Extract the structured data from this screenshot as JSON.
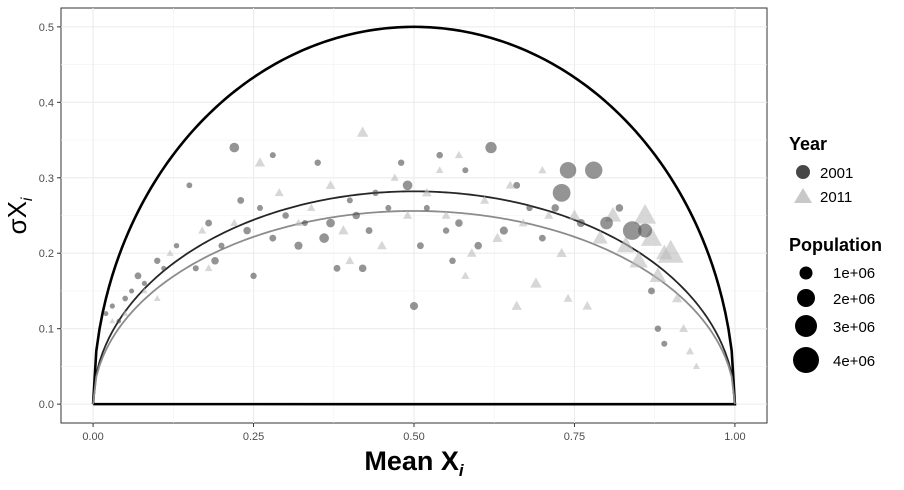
{
  "chart_data": {
    "type": "scatter",
    "xlabel": "Mean X",
    "xlabel_sub": "i",
    "ylabel": "σX",
    "ylabel_sub": "i",
    "xlim": [
      -0.05,
      1.05
    ],
    "ylim": [
      -0.025,
      0.525
    ],
    "xticks": [
      "0.00",
      "0.25",
      "0.50",
      "0.75",
      "1.00"
    ],
    "xtick_values": [
      0,
      0.25,
      0.5,
      0.75,
      1.0
    ],
    "yticks": [
      "0.0",
      "0.1",
      "0.2",
      "0.3",
      "0.4",
      "0.5"
    ],
    "ytick_values": [
      0,
      0.1,
      0.2,
      0.3,
      0.4,
      0.5
    ],
    "grid": true,
    "legend_position": "right",
    "legend": {
      "year_title": "Year",
      "year_entries": [
        {
          "label": "2001",
          "shape": "circle",
          "color": "#333333"
        },
        {
          "label": "2011",
          "shape": "triangle",
          "color": "#c8c8c8"
        }
      ],
      "population_title": "Population",
      "population_entries": [
        {
          "label": "1e+06",
          "value": 1000000
        },
        {
          "label": "2e+06",
          "value": 2000000
        },
        {
          "label": "3e+06",
          "value": 3000000
        },
        {
          "label": "4e+06",
          "value": 4000000
        }
      ]
    },
    "colors": {
      "year2001": "#4d4d4d",
      "year2011": "#bdbdbd",
      "boundary": "#000000",
      "curve2001": "#262626",
      "curve2011": "#8c8c8c"
    },
    "reference_curve": "sqrt(x*(1-x))",
    "fit_curves": [
      {
        "series": "2001",
        "peak_x": 0.5,
        "peak_y": 0.282
      },
      {
        "series": "2011",
        "peak_x": 0.5,
        "peak_y": 0.256
      }
    ],
    "series": [
      {
        "name": "2001",
        "shape": "circle",
        "points": [
          [
            0.02,
            0.12,
            50000
          ],
          [
            0.03,
            0.13,
            60000
          ],
          [
            0.04,
            0.11,
            40000
          ],
          [
            0.05,
            0.14,
            80000
          ],
          [
            0.06,
            0.15,
            50000
          ],
          [
            0.07,
            0.17,
            150000
          ],
          [
            0.08,
            0.16,
            60000
          ],
          [
            0.1,
            0.19,
            120000
          ],
          [
            0.11,
            0.18,
            50000
          ],
          [
            0.13,
            0.21,
            70000
          ],
          [
            0.15,
            0.29,
            90000
          ],
          [
            0.16,
            0.18,
            100000
          ],
          [
            0.18,
            0.24,
            150000
          ],
          [
            0.19,
            0.19,
            200000
          ],
          [
            0.2,
            0.21,
            100000
          ],
          [
            0.22,
            0.34,
            400000
          ],
          [
            0.23,
            0.27,
            150000
          ],
          [
            0.24,
            0.23,
            200000
          ],
          [
            0.26,
            0.26,
            100000
          ],
          [
            0.28,
            0.22,
            150000
          ],
          [
            0.3,
            0.25,
            130000
          ],
          [
            0.32,
            0.21,
            250000
          ],
          [
            0.33,
            0.24,
            100000
          ],
          [
            0.35,
            0.32,
            120000
          ],
          [
            0.37,
            0.24,
            300000
          ],
          [
            0.38,
            0.18,
            150000
          ],
          [
            0.4,
            0.27,
            100000
          ],
          [
            0.41,
            0.25,
            200000
          ],
          [
            0.43,
            0.23,
            150000
          ],
          [
            0.44,
            0.28,
            120000
          ],
          [
            0.46,
            0.26,
            100000
          ],
          [
            0.48,
            0.32,
            120000
          ],
          [
            0.49,
            0.29,
            400000
          ],
          [
            0.51,
            0.21,
            150000
          ],
          [
            0.52,
            0.26,
            100000
          ],
          [
            0.54,
            0.33,
            130000
          ],
          [
            0.55,
            0.23,
            120000
          ],
          [
            0.57,
            0.24,
            200000
          ],
          [
            0.58,
            0.31,
            100000
          ],
          [
            0.6,
            0.21,
            200000
          ],
          [
            0.62,
            0.34,
            600000
          ],
          [
            0.64,
            0.23,
            250000
          ],
          [
            0.66,
            0.29,
            150000
          ],
          [
            0.68,
            0.26,
            120000
          ],
          [
            0.7,
            0.22,
            150000
          ],
          [
            0.72,
            0.26,
            200000
          ],
          [
            0.73,
            0.28,
            1800000
          ],
          [
            0.74,
            0.31,
            1500000
          ],
          [
            0.76,
            0.24,
            250000
          ],
          [
            0.78,
            0.31,
            1700000
          ],
          [
            0.8,
            0.24,
            800000
          ],
          [
            0.82,
            0.26,
            200000
          ],
          [
            0.84,
            0.23,
            2000000
          ],
          [
            0.86,
            0.23,
            1000000
          ],
          [
            0.87,
            0.15,
            150000
          ],
          [
            0.88,
            0.1,
            120000
          ],
          [
            0.89,
            0.08,
            100000
          ],
          [
            0.28,
            0.33,
            100000
          ],
          [
            0.36,
            0.22,
            400000
          ],
          [
            0.42,
            0.18,
            200000
          ],
          [
            0.5,
            0.13,
            250000
          ],
          [
            0.56,
            0.19,
            130000
          ],
          [
            0.25,
            0.17,
            120000
          ]
        ]
      },
      {
        "name": "2011",
        "shape": "triangle",
        "points": [
          [
            0.03,
            0.11,
            50000
          ],
          [
            0.05,
            0.12,
            60000
          ],
          [
            0.08,
            0.15,
            60000
          ],
          [
            0.12,
            0.2,
            100000
          ],
          [
            0.17,
            0.23,
            150000
          ],
          [
            0.22,
            0.24,
            150000
          ],
          [
            0.26,
            0.32,
            300000
          ],
          [
            0.29,
            0.28,
            200000
          ],
          [
            0.32,
            0.24,
            150000
          ],
          [
            0.37,
            0.29,
            250000
          ],
          [
            0.39,
            0.23,
            300000
          ],
          [
            0.42,
            0.36,
            400000
          ],
          [
            0.45,
            0.21,
            250000
          ],
          [
            0.47,
            0.3,
            150000
          ],
          [
            0.49,
            0.25,
            200000
          ],
          [
            0.52,
            0.28,
            250000
          ],
          [
            0.55,
            0.25,
            200000
          ],
          [
            0.57,
            0.33,
            150000
          ],
          [
            0.59,
            0.2,
            250000
          ],
          [
            0.61,
            0.27,
            200000
          ],
          [
            0.63,
            0.22,
            300000
          ],
          [
            0.65,
            0.29,
            200000
          ],
          [
            0.67,
            0.24,
            200000
          ],
          [
            0.69,
            0.16,
            400000
          ],
          [
            0.71,
            0.25,
            200000
          ],
          [
            0.73,
            0.2,
            300000
          ],
          [
            0.75,
            0.25,
            400000
          ],
          [
            0.77,
            0.13,
            250000
          ],
          [
            0.79,
            0.22,
            800000
          ],
          [
            0.81,
            0.25,
            1000000
          ],
          [
            0.83,
            0.21,
            1200000
          ],
          [
            0.85,
            0.19,
            1300000
          ],
          [
            0.86,
            0.25,
            2000000
          ],
          [
            0.87,
            0.22,
            1800000
          ],
          [
            0.88,
            0.17,
            1000000
          ],
          [
            0.89,
            0.2,
            1000000
          ],
          [
            0.9,
            0.2,
            2800000
          ],
          [
            0.91,
            0.14,
            300000
          ],
          [
            0.92,
            0.1,
            200000
          ],
          [
            0.93,
            0.07,
            150000
          ],
          [
            0.94,
            0.05,
            100000
          ],
          [
            0.4,
            0.19,
            200000
          ],
          [
            0.34,
            0.26,
            150000
          ],
          [
            0.54,
            0.31,
            120000
          ],
          [
            0.66,
            0.13,
            300000
          ],
          [
            0.58,
            0.17,
            150000
          ],
          [
            0.18,
            0.18,
            130000
          ],
          [
            0.1,
            0.14,
            80000
          ],
          [
            0.74,
            0.14,
            200000
          ],
          [
            0.7,
            0.31,
            150000
          ]
        ]
      }
    ]
  }
}
